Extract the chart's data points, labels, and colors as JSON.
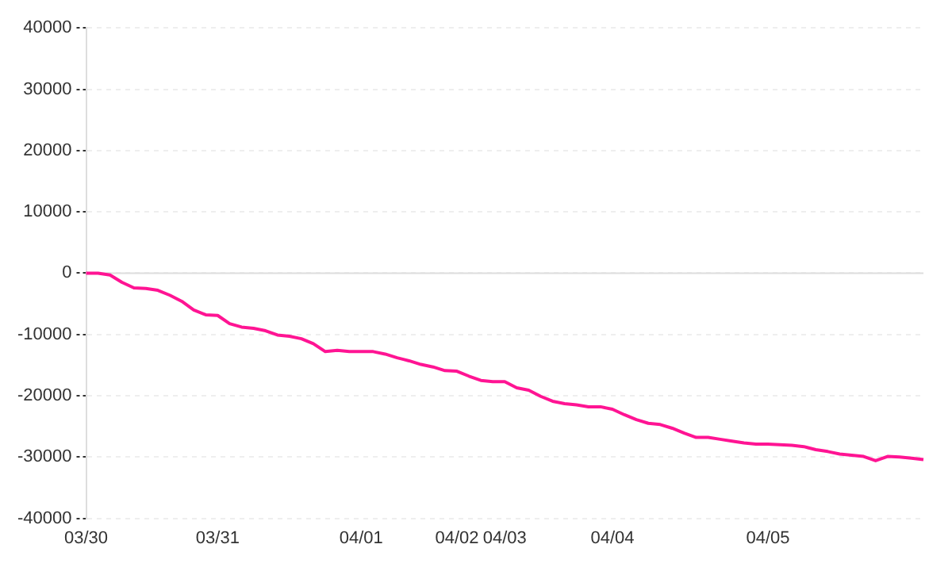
{
  "chart_data": {
    "type": "line",
    "categories": [
      "03/30",
      null,
      null,
      null,
      null,
      null,
      null,
      null,
      null,
      null,
      null,
      "03/31",
      null,
      null,
      null,
      null,
      null,
      null,
      null,
      null,
      null,
      null,
      null,
      "04/01",
      null,
      null,
      null,
      null,
      null,
      null,
      null,
      "04/02",
      null,
      null,
      null,
      "04/03",
      null,
      null,
      null,
      null,
      null,
      null,
      null,
      null,
      "04/04",
      null,
      null,
      null,
      null,
      null,
      null,
      null,
      null,
      null,
      null,
      null,
      null,
      "04/05",
      null,
      null,
      null,
      null,
      null,
      null,
      null,
      null,
      null,
      null,
      null,
      null,
      null
    ],
    "series": [
      {
        "color": "#ff1493",
        "values": [
          0,
          0,
          -300,
          -1500,
          -2400,
          -2500,
          -2800,
          -3600,
          -4600,
          -6000,
          -6800,
          -6900,
          -8250,
          -8800,
          -9000,
          -9400,
          -10100,
          -10300,
          -10700,
          -11500,
          -12800,
          -12600,
          -12800,
          -12800,
          -12800,
          -13200,
          -13800,
          -14300,
          -14900,
          -15300,
          -15900,
          -16000,
          -16800,
          -17500,
          -17700,
          -17700,
          -18700,
          -19100,
          -20100,
          -20900,
          -21300,
          -21500,
          -21800,
          -21800,
          -22200,
          -23100,
          -23900,
          -24500,
          -24700,
          -25300,
          -26100,
          -26800,
          -26800,
          -27100,
          -27400,
          -27700,
          -27900,
          -27900,
          -28000,
          -28100,
          -28300,
          -28800,
          -29100,
          -29500,
          -29700,
          -29900,
          -30600,
          -29900,
          -30000,
          -30200,
          -30400
        ]
      }
    ],
    "ylim": [
      -40000,
      40000
    ],
    "yticks": [
      -40000,
      -30000,
      -20000,
      -10000,
      0,
      10000,
      20000,
      30000,
      40000
    ],
    "grid": "y",
    "legend": false,
    "marker": "none",
    "line_style": "solid",
    "ref_lines": [
      {
        "axis": "y",
        "value": 0,
        "color": "#dddddd",
        "line_style": "solid"
      }
    ]
  }
}
